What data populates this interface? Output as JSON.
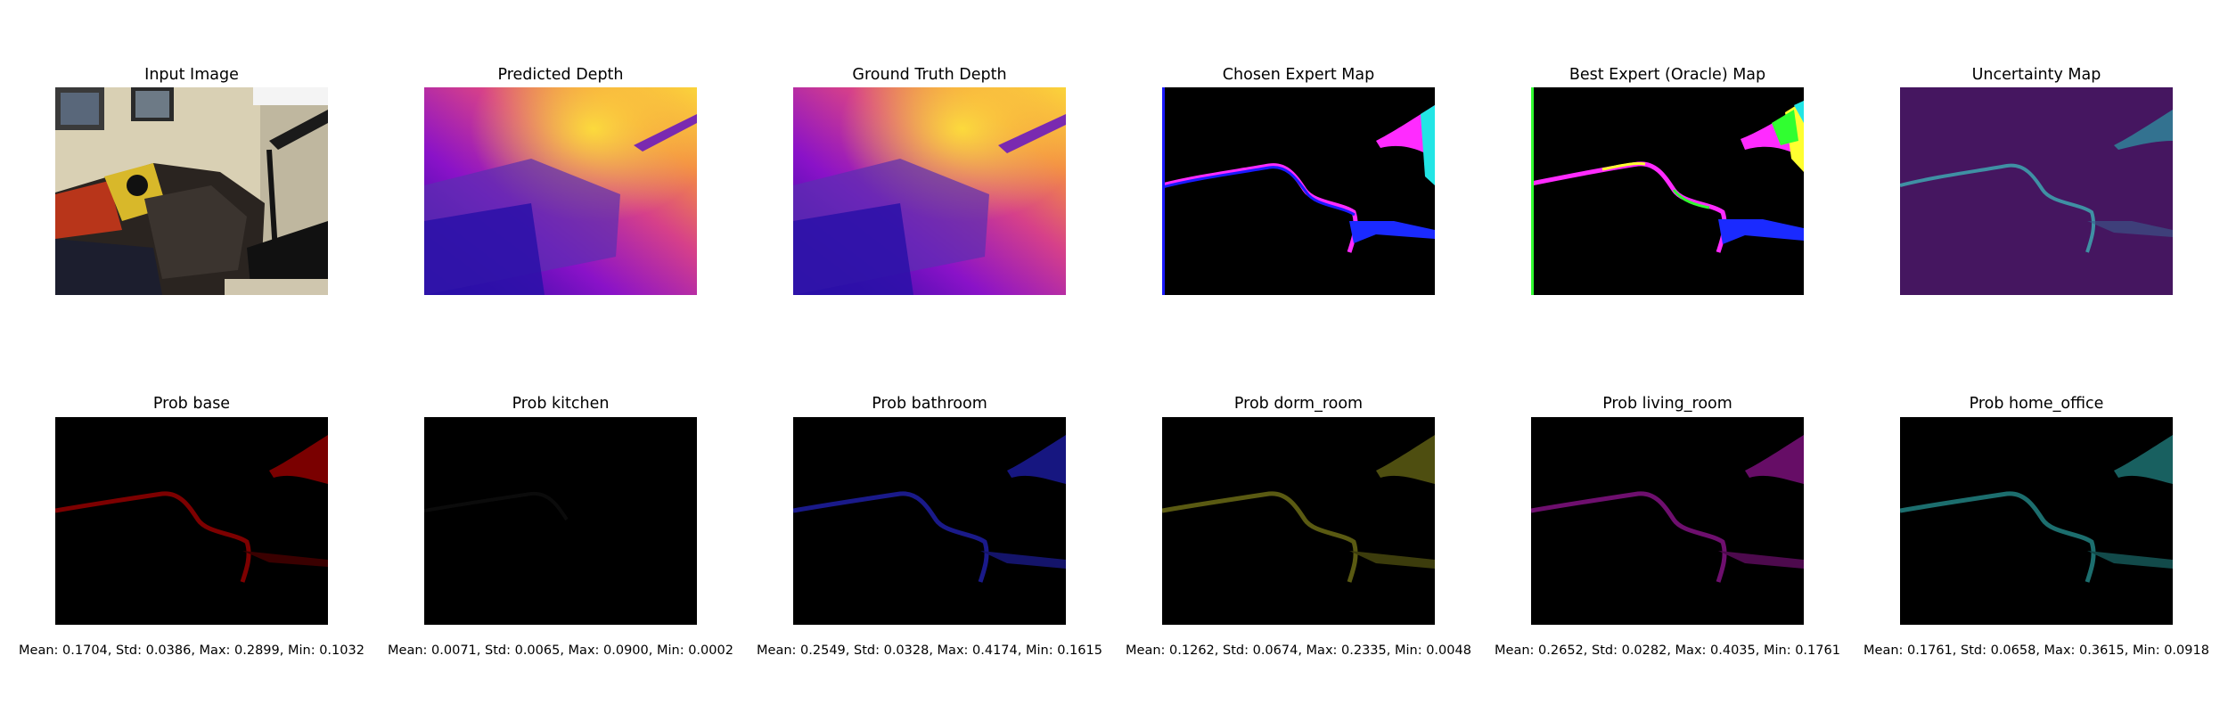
{
  "figure": {
    "row1": [
      {
        "title": "Input Image",
        "icon": "photo-room"
      },
      {
        "title": "Predicted Depth",
        "icon": "depth-map"
      },
      {
        "title": "Ground Truth Depth",
        "icon": "depth-map"
      },
      {
        "title": "Chosen Expert Map",
        "icon": "expert-map"
      },
      {
        "title": "Best Expert (Oracle) Map",
        "icon": "oracle-map"
      },
      {
        "title": "Uncertainty Map",
        "icon": "uncertainty-map"
      }
    ],
    "row2": [
      {
        "title": "Prob base",
        "color": "#8b0000",
        "stats": "Mean: 0.1704, Std: 0.0386, Max: 0.2899, Min: 0.1032"
      },
      {
        "title": "Prob kitchen",
        "color": "#050505",
        "stats": "Mean: 0.0071, Std: 0.0065, Max: 0.0900, Min: 0.0002"
      },
      {
        "title": "Prob bathroom",
        "color": "#1a1a8a",
        "stats": "Mean: 0.2549, Std: 0.0328, Max: 0.4174, Min: 0.1615"
      },
      {
        "title": "Prob dorm_room",
        "color": "#5a5a12",
        "stats": "Mean: 0.1262, Std: 0.0674, Max: 0.2335, Min: 0.0048"
      },
      {
        "title": "Prob living_room",
        "color": "#6e0f6e",
        "stats": "Mean: 0.2652, Std: 0.0282, Max: 0.4035, Min: 0.1761"
      },
      {
        "title": "Prob home_office",
        "color": "#1c6e6e",
        "stats": "Mean: 0.1761, Std: 0.0658, Max: 0.3615, Min: 0.0918"
      }
    ]
  }
}
